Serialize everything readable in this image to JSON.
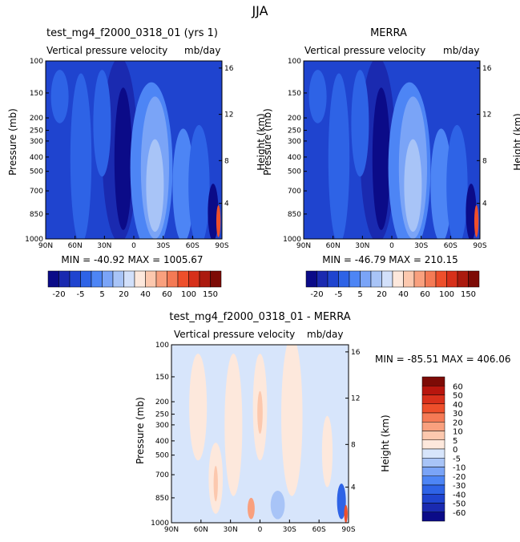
{
  "page": {
    "title": "JJA"
  },
  "panels": [
    {
      "title": "test_mg4_f2000_0318_01 (yrs 1)",
      "subtitle_left": "Vertical pressure velocity",
      "subtitle_right": "mb/day",
      "ylabel": "Pressure (mb)",
      "ylabel_right": "Height (km)",
      "min_max_text": "MIN = -40.92   MAX = 1005.67"
    },
    {
      "title": "MERRA",
      "subtitle_left": "Vertical pressure velocity",
      "subtitle_right": "mb/day",
      "ylabel": "Pressure (mb)",
      "ylabel_right": "Height (km)",
      "min_max_text": "MIN = -46.79   MAX = 210.15"
    },
    {
      "title": "test_mg4_f2000_0318_01 - MERRA",
      "subtitle_left": "Vertical pressure velocity",
      "subtitle_right": "mb/day",
      "ylabel": "Pressure (mb)",
      "ylabel_right": "Height (km)",
      "min_max_text": "MIN = -85.51   MAX = 406.06"
    }
  ],
  "chart_data": [
    {
      "type": "heatmap",
      "title": "test_mg4_f2000_0318_01 (yrs 1)",
      "x_ticks": [
        "90N",
        "60N",
        "30N",
        "0",
        "30S",
        "60S",
        "90S"
      ],
      "y_ticks": [
        "100",
        "150",
        "200",
        "250",
        "300",
        "400",
        "500",
        "700",
        "850",
        "1000"
      ],
      "y_ticks_right": [
        "16",
        "12",
        "8",
        "4"
      ],
      "colorbar": {
        "tick_labels": [
          "-20",
          "-5",
          "5",
          "20",
          "40",
          "60",
          "100",
          "150"
        ],
        "colors": [
          "#0b0b88",
          "#1a2ab0",
          "#1f44cf",
          "#2e63e6",
          "#4d85f5",
          "#7aa4f7",
          "#a8c4f7",
          "#d2e0fa",
          "#fde8dc",
          "#fcc8ae",
          "#f9a07e",
          "#f47a55",
          "#ee4f2b",
          "#d7301a",
          "#ab1a0e",
          "#7d0b06"
        ]
      }
    },
    {
      "type": "heatmap",
      "title": "MERRA",
      "x_ticks": [
        "90N",
        "60N",
        "30N",
        "0",
        "30S",
        "60S",
        "90S"
      ],
      "y_ticks": [
        "100",
        "150",
        "200",
        "250",
        "300",
        "400",
        "500",
        "700",
        "850",
        "1000"
      ],
      "y_ticks_right": [
        "16",
        "12",
        "8",
        "4"
      ],
      "colorbar": {
        "tick_labels": [
          "-20",
          "-5",
          "5",
          "20",
          "40",
          "60",
          "100",
          "150"
        ],
        "colors": [
          "#0b0b88",
          "#1a2ab0",
          "#1f44cf",
          "#2e63e6",
          "#4d85f5",
          "#7aa4f7",
          "#a8c4f7",
          "#d2e0fa",
          "#fde8dc",
          "#fcc8ae",
          "#f9a07e",
          "#f47a55",
          "#ee4f2b",
          "#d7301a",
          "#ab1a0e",
          "#7d0b06"
        ]
      }
    },
    {
      "type": "heatmap",
      "title": "test_mg4_f2000_0318_01 - MERRA",
      "x_ticks": [
        "90N",
        "60N",
        "30N",
        "0",
        "30S",
        "60S",
        "90S"
      ],
      "y_ticks": [
        "100",
        "150",
        "200",
        "250",
        "300",
        "400",
        "500",
        "700",
        "850",
        "1000"
      ],
      "y_ticks_right": [
        "16",
        "12",
        "8",
        "4"
      ],
      "colorbar": {
        "tick_labels": [
          "60",
          "50",
          "40",
          "30",
          "20",
          "10",
          "5",
          "0",
          "-5",
          "-10",
          "-20",
          "-30",
          "-40",
          "-50",
          "-60"
        ],
        "colors": [
          "#7d0b06",
          "#b8160e",
          "#d9301b",
          "#ee4f2b",
          "#f57a55",
          "#f9a07e",
          "#fcc8ae",
          "#fde8dc",
          "#d7e5fb",
          "#a8c4f7",
          "#7aa4f7",
          "#4d85f5",
          "#2e63e6",
          "#1f44cf",
          "#1a2ab0",
          "#0b0b88"
        ]
      }
    }
  ]
}
